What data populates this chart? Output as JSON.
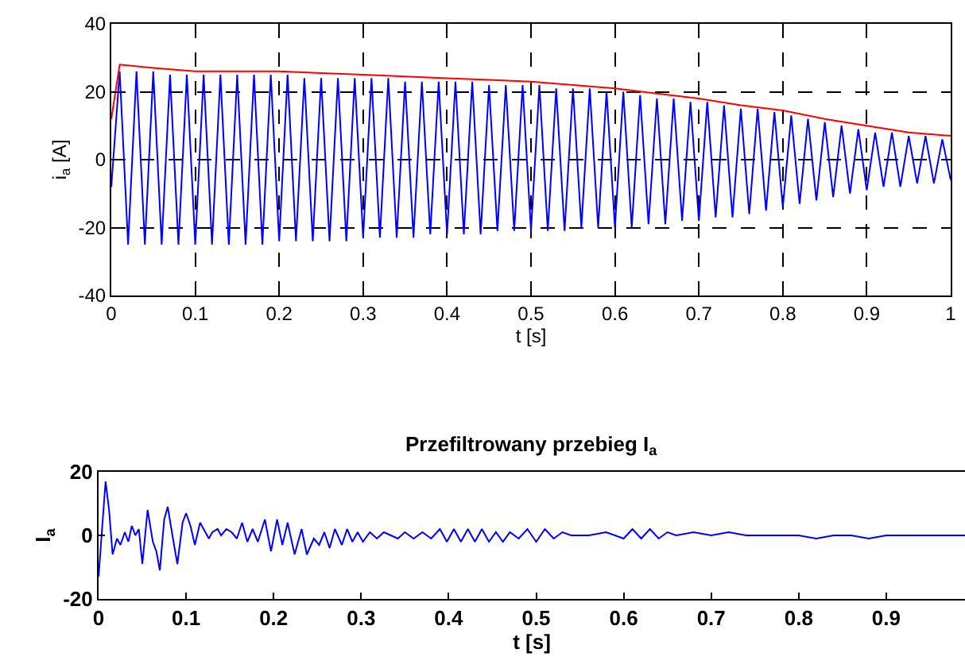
{
  "chart_data": [
    {
      "type": "line",
      "xlabel": "t [s]",
      "ylabel": "i$_{a}$ [A]",
      "xlim": [
        0,
        1
      ],
      "ylim": [
        -40,
        40
      ],
      "xticks": [
        0,
        0.1,
        0.2,
        0.3,
        0.4,
        0.5,
        0.6,
        0.7,
        0.8,
        0.9,
        1
      ],
      "yticks": [
        -40,
        -20,
        0,
        20,
        40
      ],
      "grid": true,
      "series": [
        {
          "color": "#0000ff",
          "x": [
            0,
            0.01,
            0.02,
            0.03,
            0.04,
            0.05,
            0.06,
            0.07,
            0.08,
            0.09,
            0.1,
            0.11,
            0.12,
            0.13,
            0.14,
            0.15,
            0.16,
            0.17,
            0.18,
            0.19,
            0.2,
            0.21,
            0.22,
            0.23,
            0.24,
            0.25,
            0.26,
            0.27,
            0.28,
            0.29,
            0.3,
            0.31,
            0.32,
            0.33,
            0.34,
            0.35,
            0.36,
            0.37,
            0.38,
            0.39,
            0.4,
            0.41,
            0.42,
            0.43,
            0.44,
            0.45,
            0.46,
            0.47,
            0.48,
            0.49,
            0.5,
            0.51,
            0.52,
            0.53,
            0.54,
            0.55,
            0.56,
            0.57,
            0.58,
            0.59,
            0.6,
            0.61,
            0.62,
            0.63,
            0.64,
            0.65,
            0.66,
            0.67,
            0.68,
            0.69,
            0.7,
            0.71,
            0.72,
            0.73,
            0.74,
            0.75,
            0.76,
            0.77,
            0.78,
            0.79,
            0.8,
            0.81,
            0.82,
            0.83,
            0.84,
            0.85,
            0.86,
            0.87,
            0.88,
            0.89,
            0.9,
            0.91,
            0.92,
            0.93,
            0.94,
            0.95,
            0.96,
            0.97,
            0.98,
            0.99,
            1
          ],
          "values": [
            -8,
            26,
            -25,
            26,
            -25,
            26,
            -25,
            25,
            -25,
            25,
            -25,
            25,
            -25,
            25,
            -25,
            25,
            -25,
            25,
            -25,
            25,
            -24,
            25,
            -24,
            24,
            -24,
            24,
            -24,
            24,
            -24,
            24,
            -23,
            24,
            -23,
            24,
            -23,
            23,
            -23,
            23,
            -22,
            23,
            -22,
            23,
            -22,
            23,
            -22,
            22,
            -21,
            22,
            -21,
            22,
            -21,
            22,
            -21,
            21,
            -21,
            21,
            -20,
            21,
            -20,
            20,
            -20,
            20,
            -20,
            19,
            -19,
            18,
            -19,
            18,
            -18,
            17,
            -18,
            17,
            -17,
            16,
            -17,
            15,
            -16,
            15,
            -15,
            14,
            -14,
            13,
            -13,
            12,
            -12,
            11,
            -11,
            10,
            -10,
            9,
            -9,
            8,
            -8,
            8,
            -8,
            7,
            -7,
            7,
            -7,
            6,
            -6
          ]
        },
        {
          "color": "#ff0000",
          "x": [
            0,
            0.01,
            0.05,
            0.1,
            0.15,
            0.2,
            0.25,
            0.3,
            0.35,
            0.4,
            0.45,
            0.5,
            0.55,
            0.6,
            0.65,
            0.7,
            0.75,
            0.8,
            0.85,
            0.9,
            0.95,
            1
          ],
          "values": [
            12,
            28,
            27,
            26,
            26,
            26,
            25.5,
            25,
            24.5,
            24,
            23.5,
            23,
            22,
            21,
            19.5,
            18,
            16,
            14.5,
            12,
            10,
            8,
            7
          ]
        }
      ]
    },
    {
      "type": "line",
      "title": "Przefiltrowany przebieg I$_{a}$",
      "xlabel": "t [s]",
      "ylabel": "I$_{a}$",
      "xlim": [
        0,
        0.99
      ],
      "ylim": [
        -20,
        20
      ],
      "xticks": [
        0,
        0.1,
        0.2,
        0.3,
        0.4,
        0.5,
        0.6,
        0.7,
        0.8,
        0.9
      ],
      "yticks": [
        -20,
        0,
        20
      ],
      "grid": false,
      "series": [
        {
          "color": "#0000ff",
          "x": [
            0,
            0.004,
            0.008,
            0.012,
            0.016,
            0.021,
            0.025,
            0.03,
            0.034,
            0.038,
            0.042,
            0.046,
            0.05,
            0.056,
            0.062,
            0.066,
            0.07,
            0.075,
            0.079,
            0.085,
            0.09,
            0.096,
            0.1,
            0.105,
            0.11,
            0.116,
            0.12,
            0.126,
            0.13,
            0.136,
            0.14,
            0.146,
            0.152,
            0.158,
            0.164,
            0.17,
            0.176,
            0.182,
            0.19,
            0.197,
            0.204,
            0.21,
            0.216,
            0.224,
            0.232,
            0.238,
            0.246,
            0.252,
            0.258,
            0.264,
            0.27,
            0.278,
            0.284,
            0.29,
            0.296,
            0.302,
            0.31,
            0.318,
            0.326,
            0.334,
            0.342,
            0.35,
            0.36,
            0.37,
            0.38,
            0.39,
            0.398,
            0.406,
            0.414,
            0.422,
            0.43,
            0.438,
            0.446,
            0.454,
            0.462,
            0.47,
            0.48,
            0.49,
            0.5,
            0.51,
            0.52,
            0.53,
            0.54,
            0.56,
            0.58,
            0.6,
            0.61,
            0.62,
            0.63,
            0.64,
            0.65,
            0.66,
            0.68,
            0.7,
            0.72,
            0.74,
            0.76,
            0.78,
            0.8,
            0.82,
            0.84,
            0.86,
            0.88,
            0.9,
            0.93,
            0.96,
            0.99
          ],
          "values": [
            -13,
            2,
            17,
            8,
            -6,
            -1,
            -3,
            1,
            -2,
            3,
            0,
            2,
            -9,
            8,
            -2,
            -5,
            -11,
            5,
            9,
            -1,
            -9,
            4,
            7,
            3,
            -3,
            4,
            2,
            -1,
            1,
            2,
            0,
            2,
            1,
            -1,
            4,
            -2,
            2,
            -2,
            5,
            -5,
            5,
            -3,
            4,
            -6,
            2,
            -6,
            -1,
            -3,
            1,
            -4,
            2,
            -3,
            2,
            -2,
            1,
            -2,
            1,
            -1,
            1,
            0,
            -1,
            1,
            -1,
            1,
            -1,
            2,
            -2,
            2,
            -2,
            2,
            -2,
            2,
            -2,
            1,
            -2,
            1,
            -1,
            2,
            -2,
            2,
            -1,
            1,
            0,
            0,
            1,
            -1,
            2,
            -1,
            2,
            -1,
            1,
            0,
            1,
            0,
            1,
            0,
            0,
            0,
            0,
            -1,
            0,
            0,
            -1,
            0,
            0,
            0,
            0
          ]
        }
      ]
    }
  ]
}
